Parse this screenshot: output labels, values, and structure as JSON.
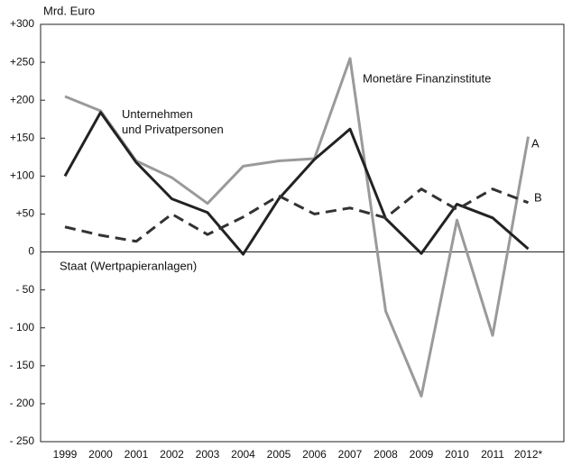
{
  "chart_data": {
    "type": "line",
    "unit_label": "Mrd. Euro",
    "categories": [
      "1999",
      "2000",
      "2001",
      "2002",
      "2003",
      "2004",
      "2005",
      "2006",
      "2007",
      "2008",
      "2009",
      "2010",
      "2011",
      "2012*"
    ],
    "series": [
      {
        "name": "Monetäre Finanzinstitute",
        "color": "#9a9a9a",
        "style": "solid",
        "values": [
          205,
          186,
          120,
          98,
          64,
          113,
          120,
          123,
          255,
          -78,
          -190,
          42,
          -110,
          152
        ]
      },
      {
        "name": "Unternehmen\nund Privatpersonen",
        "color": "#222222",
        "style": "solid",
        "values": [
          100,
          184,
          118,
          70,
          52,
          -3,
          70,
          122,
          162,
          44,
          -2,
          63,
          45,
          4
        ]
      },
      {
        "name": "Staat (Wertpapieranlagen)",
        "color": "#333333",
        "style": "dashed",
        "values": [
          33,
          22,
          14,
          50,
          23,
          46,
          74,
          50,
          58,
          45,
          83,
          56,
          83,
          65
        ]
      }
    ],
    "annotations": [
      "A",
      "B"
    ],
    "ylim": [
      -250,
      300
    ],
    "yticks": [
      {
        "value": -250,
        "label": "- 250"
      },
      {
        "value": -200,
        "label": "- 200"
      },
      {
        "value": -150,
        "label": "- 150"
      },
      {
        "value": -100,
        "label": "- 100"
      },
      {
        "value": -50,
        "label": "- 50"
      },
      0,
      {
        "value": 50,
        "label": "+50"
      },
      {
        "value": 100,
        "label": "+100"
      },
      {
        "value": 150,
        "label": "+150"
      },
      {
        "value": 200,
        "label": "+200"
      },
      {
        "value": 250,
        "label": "+250"
      },
      {
        "value": 300,
        "label": "+300"
      }
    ],
    "grid": false
  }
}
